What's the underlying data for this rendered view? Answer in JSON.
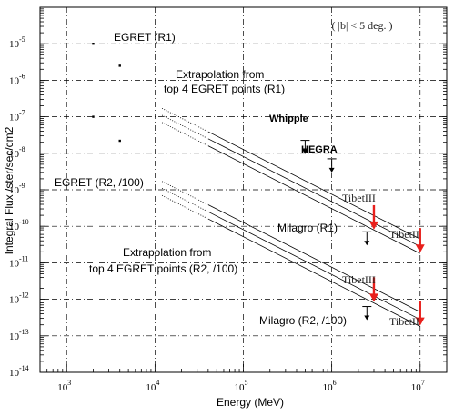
{
  "chart_data": {
    "type": "line",
    "title": "",
    "xlabel": "Energy (MeV)",
    "ylabel": "Integral Flux  /ster/sec/cm2",
    "xscale": "log",
    "yscale": "log",
    "xlim": [
      500,
      20000000
    ],
    "ylim": [
      1e-14,
      0.0001
    ],
    "grid": true,
    "x_ticks": [
      {
        "base": "10",
        "exp": "3",
        "value": 1000
      },
      {
        "base": "10",
        "exp": "4",
        "value": 10000
      },
      {
        "base": "10",
        "exp": "5",
        "value": 100000
      },
      {
        "base": "10",
        "exp": "6",
        "value": 1000000
      },
      {
        "base": "10",
        "exp": "7",
        "value": 10000000
      }
    ],
    "y_ticks": [
      {
        "base": "10",
        "exp": "-5",
        "value": 1e-05
      },
      {
        "base": "10",
        "exp": "-6",
        "value": 1e-06
      },
      {
        "base": "10",
        "exp": "-7",
        "value": 1e-07
      },
      {
        "base": "10",
        "exp": "-8",
        "value": 1e-08
      },
      {
        "base": "10",
        "exp": "-9",
        "value": 1e-09
      },
      {
        "base": "10",
        "exp": "-10",
        "value": 1e-10
      },
      {
        "base": "10",
        "exp": "-11",
        "value": 1e-11
      },
      {
        "base": "10",
        "exp": "-12",
        "value": 1e-12
      },
      {
        "base": "10",
        "exp": "-13",
        "value": 1e-13
      },
      {
        "base": "10",
        "exp": "-14",
        "value": 1e-14
      }
    ],
    "region_label": "( |b| < 5 deg. )",
    "annotations": {
      "egret_r1": "EGRET (R1)",
      "egret_r2": "EGRET (R2, /100)",
      "extrap_r1_line1": "Extrapolation from",
      "extrap_r1_line2": "top 4 EGRET points (R1)",
      "extrap_r2_line1": "Extrapolation from",
      "extrap_r2_line2": "top 4 EGRET points (R2, /100)",
      "whipple": "Whipple",
      "hegra": "HEGRA",
      "milagro_r1": "Milagro (R1)",
      "milagro_r2": "Milagro (R2, /100)",
      "tibet3_r1": "TibetIII",
      "tibet2_r1": "TibetII",
      "tibet3_r2": "TibetIII",
      "tibet2_r2": "TibetII"
    },
    "series": [
      {
        "group": "R1",
        "x": [
          2000,
          4000
        ],
        "y": [
          1e-05,
          2.5e-06
        ]
      },
      {
        "group": "R1",
        "x": [
          2000,
          4000
        ],
        "y": [
          1e-07,
          2.2e-08
        ]
      },
      {
        "group": "R2",
        "x": [
          12000,
          10000000
        ],
        "y": [
          1.7e-07,
          4.5e-11
        ],
        "style": "extrapolation-band-upper"
      },
      {
        "group": "R2",
        "x": [
          12000,
          10000000
        ],
        "y": [
          1.1e-07,
          2.8e-11
        ],
        "style": "extrapolation-band-center"
      },
      {
        "group": "R2",
        "x": [
          12000,
          10000000
        ],
        "y": [
          7e-08,
          1.8e-11
        ],
        "style": "extrapolation-band-lower"
      },
      {
        "group": "R2",
        "x": [
          12000,
          10000000
        ],
        "y": [
          1.7e-09,
          4.5e-13
        ],
        "style": "extrapolation-band-upper"
      },
      {
        "group": "R2",
        "x": [
          12000,
          10000000
        ],
        "y": [
          1.1e-09,
          2.8e-13
        ],
        "style": "extrapolation-band-center"
      },
      {
        "group": "R2",
        "x": [
          12000,
          10000000
        ],
        "y": [
          7e-10,
          1.8e-13
        ],
        "style": "extrapolation-band-lower"
      }
    ],
    "upper_limits": [
      {
        "x": 500000,
        "y": 1.6e-08,
        "color": "black"
      },
      {
        "x": 1000000,
        "y": 5e-09,
        "color": "black"
      },
      {
        "x": 3000000,
        "y": 1.7e-10,
        "color": "red"
      },
      {
        "x": 10000000,
        "y": 4e-11,
        "color": "red"
      },
      {
        "x": 2500000,
        "y": 5e-11,
        "color": "black"
      },
      {
        "x": 3000000,
        "y": 1.8e-12,
        "color": "red"
      },
      {
        "x": 10000000,
        "y": 4e-13,
        "color": "red"
      },
      {
        "x": 2500000,
        "y": 4.5e-13,
        "color": "black"
      }
    ],
    "colors": {
      "limit_red": "#e8201c",
      "ink": "#000000"
    }
  }
}
